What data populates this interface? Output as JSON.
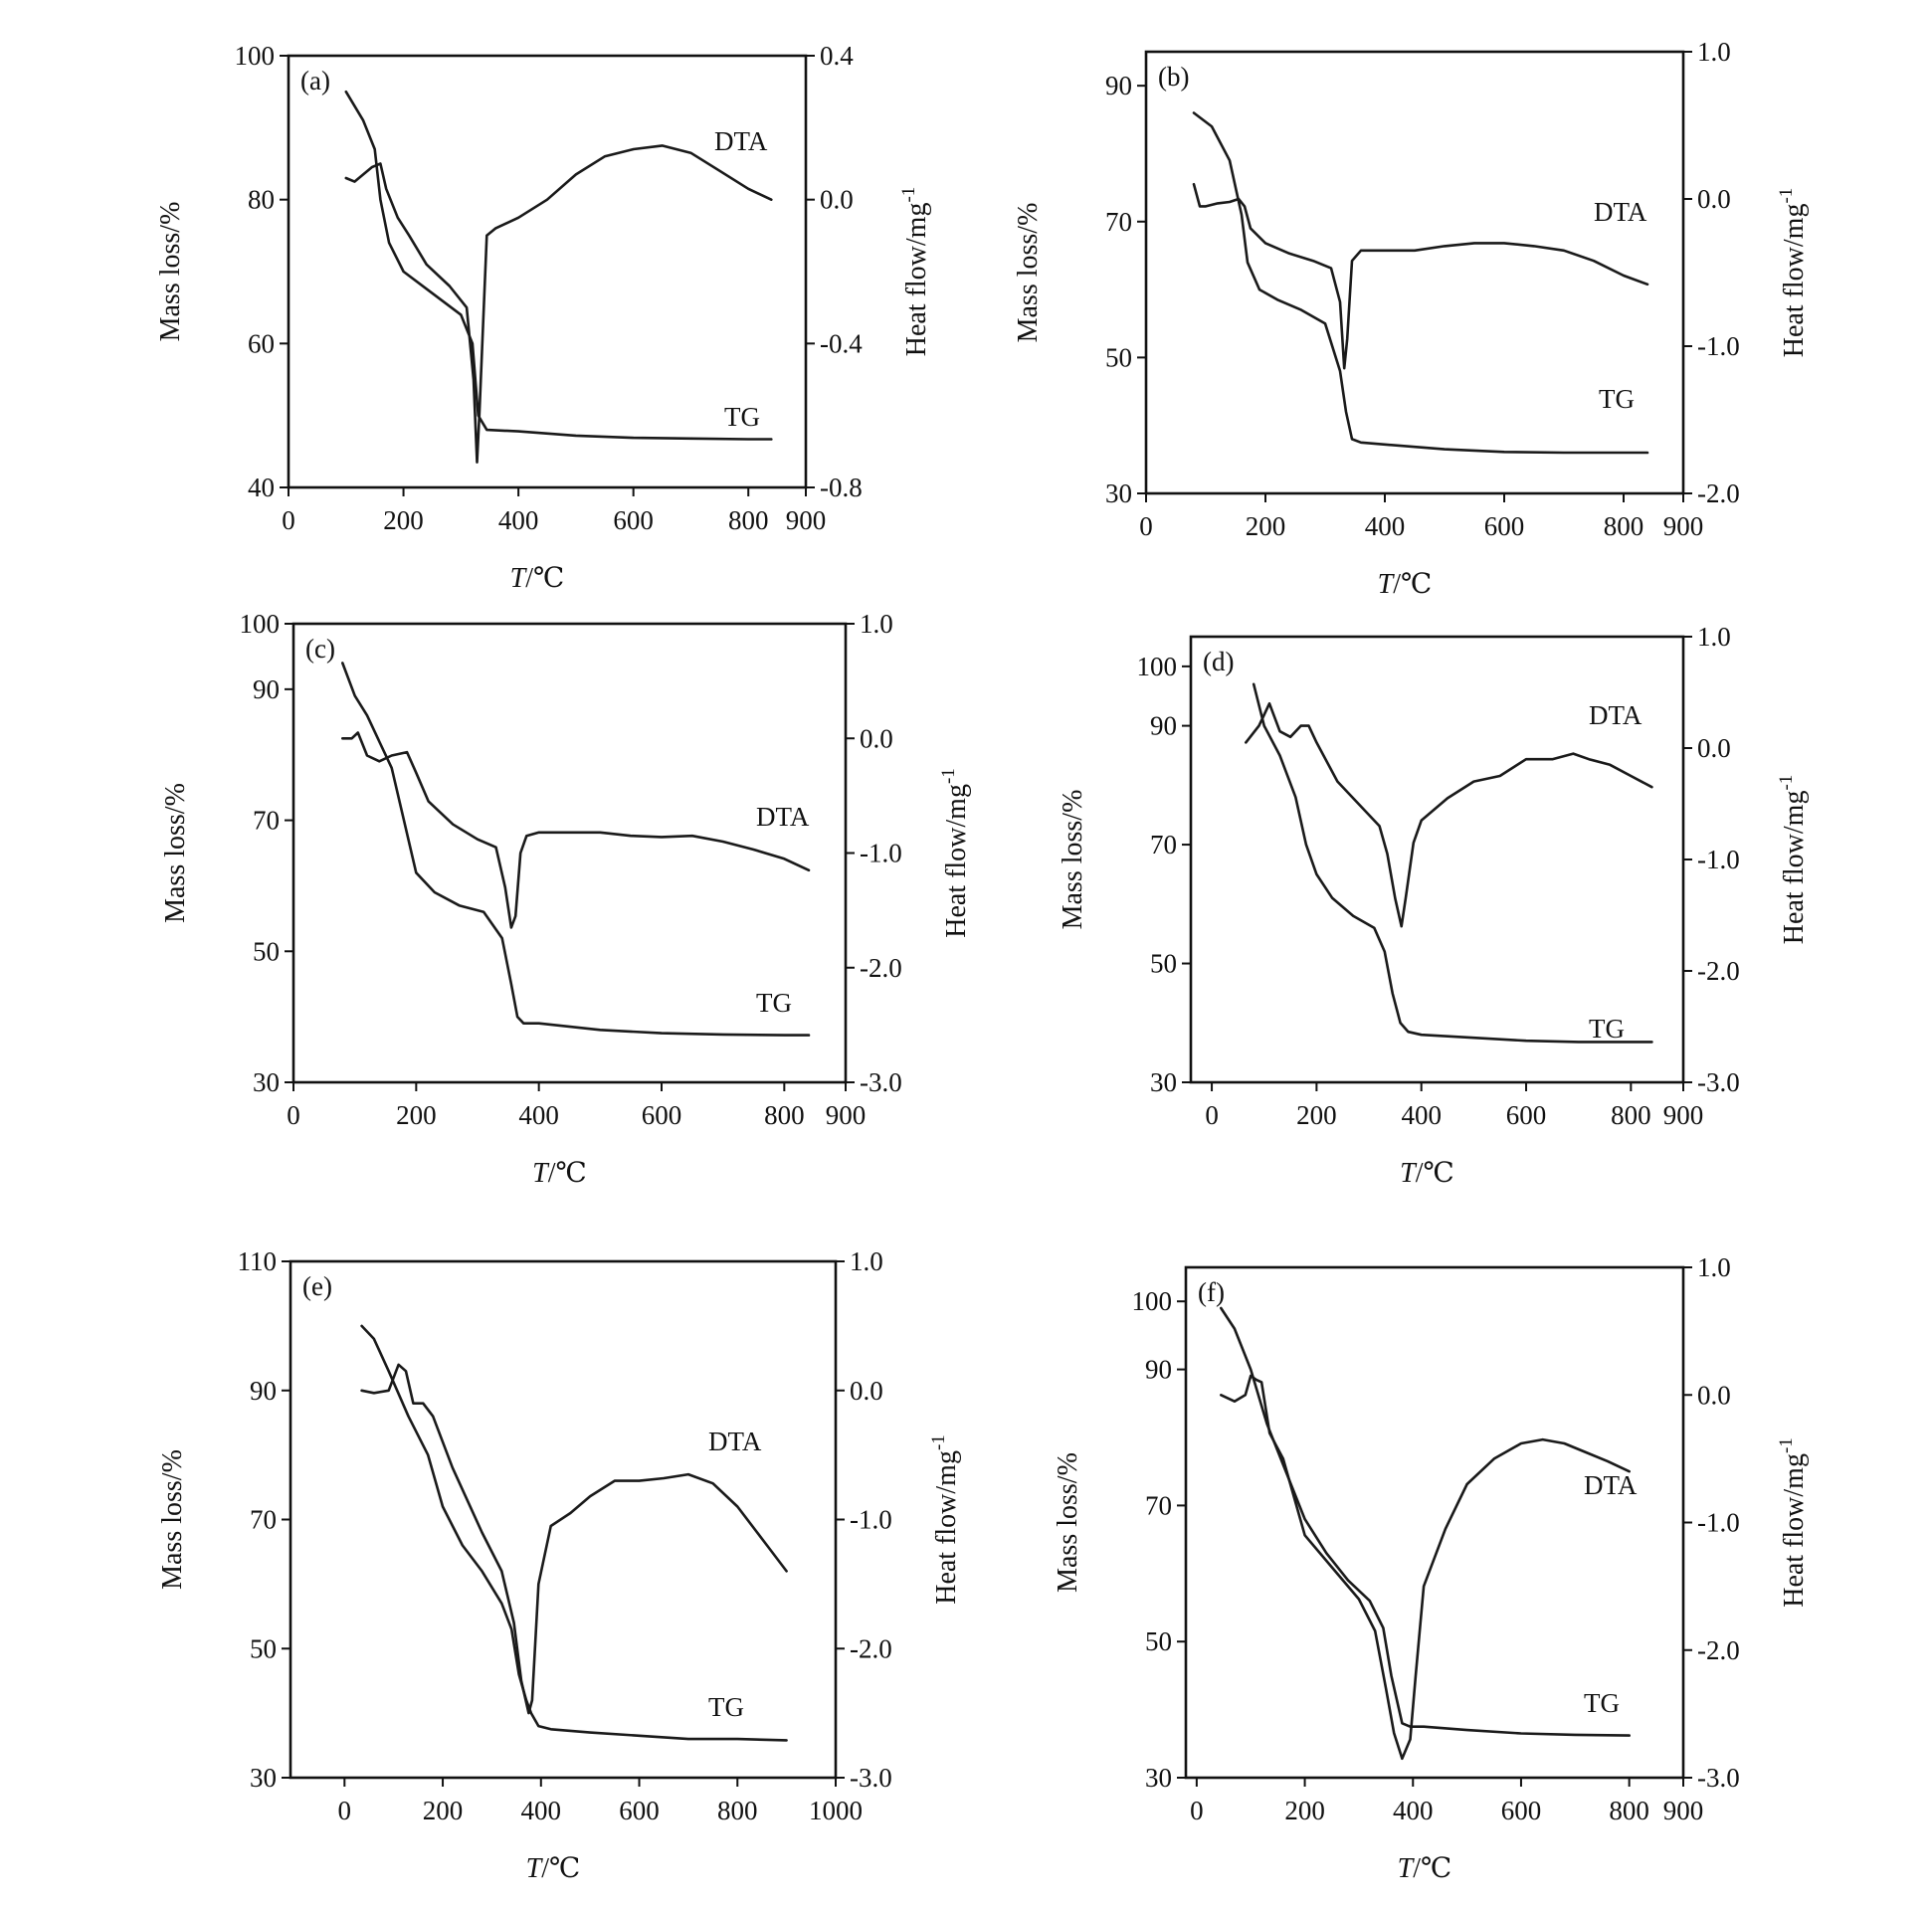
{
  "figure": {
    "ylabel_left": "Mass loss/%",
    "ylabel_right_base": "Heat flow/mg",
    "ylabel_right_sup": "-1",
    "xlabel_italic": "T",
    "xlabel_unit": "/℃",
    "colors": {
      "line": "#1a1a1a",
      "axes": "#111111",
      "background": "#ffffff"
    }
  },
  "chart_data": [
    {
      "type": "line",
      "panel": "(a)",
      "xlabel": "T/℃",
      "ylabel": "Mass loss/%",
      "y2label": "Heat flow/mg-1",
      "xlim": [
        0,
        900
      ],
      "ylim": [
        40,
        100
      ],
      "y2lim": [
        -0.8,
        0.4
      ],
      "xticks": [
        0,
        200,
        400,
        600,
        800,
        900
      ],
      "yticks": [
        40,
        60,
        80,
        100
      ],
      "y2ticks": [
        -0.8,
        -0.4,
        0.0,
        0.4
      ],
      "xtick_labels": [
        "0",
        "200",
        "400",
        "600",
        "800",
        "900"
      ],
      "ytick_labels": [
        "40",
        "60",
        "80",
        "100"
      ],
      "y2tick_labels": [
        "-0.8",
        "-0.4",
        "0.0",
        "0.4"
      ],
      "series": [
        {
          "name": "TG",
          "axis": "left",
          "x": [
            100,
            130,
            150,
            160,
            175,
            200,
            250,
            300,
            320,
            330,
            345,
            400,
            500,
            600,
            700,
            800,
            840
          ],
          "y": [
            95,
            91,
            87,
            80,
            74,
            70,
            67,
            64,
            60,
            50,
            48,
            47.8,
            47.2,
            46.9,
            46.8,
            46.7,
            46.7
          ]
        },
        {
          "name": "DTA",
          "axis": "right",
          "x": [
            100,
            115,
            130,
            145,
            160,
            170,
            190,
            210,
            240,
            280,
            310,
            322,
            328,
            332,
            345,
            360,
            400,
            450,
            500,
            550,
            600,
            650,
            700,
            750,
            800,
            840
          ],
          "y": [
            0.06,
            0.05,
            0.07,
            0.09,
            0.1,
            0.03,
            -0.05,
            -0.1,
            -0.18,
            -0.24,
            -0.3,
            -0.5,
            -0.73,
            -0.6,
            -0.1,
            -0.08,
            -0.05,
            0.0,
            0.07,
            0.12,
            0.14,
            0.15,
            0.13,
            0.08,
            0.03,
            0.0
          ]
        }
      ]
    },
    {
      "type": "line",
      "panel": "(b)",
      "xlabel": "T/℃",
      "ylabel": "Mass loss/%",
      "y2label": "Heat flow/mg-1",
      "xlim": [
        0,
        900
      ],
      "ylim": [
        30,
        95
      ],
      "y2lim": [
        -2.0,
        1.0
      ],
      "xticks": [
        0,
        200,
        400,
        600,
        800,
        900
      ],
      "yticks": [
        30,
        50,
        70,
        90
      ],
      "y2ticks": [
        -2.0,
        -1.0,
        0.0,
        1.0
      ],
      "xtick_labels": [
        "0",
        "200",
        "400",
        "600",
        "800",
        "900"
      ],
      "ytick_labels": [
        "30",
        "50",
        "70",
        "90"
      ],
      "y2tick_labels": [
        "-2.0",
        "-1.0",
        "0.0",
        "1.0"
      ],
      "series": [
        {
          "name": "TG",
          "axis": "left",
          "x": [
            80,
            110,
            140,
            160,
            170,
            190,
            220,
            260,
            300,
            325,
            335,
            345,
            360,
            400,
            500,
            600,
            700,
            800,
            840
          ],
          "y": [
            86,
            84,
            79,
            71,
            64,
            60,
            58.5,
            57,
            55,
            48,
            42,
            38,
            37.5,
            37.2,
            36.5,
            36.1,
            36,
            36,
            36
          ]
        },
        {
          "name": "DTA",
          "axis": "right",
          "x": [
            80,
            90,
            100,
            120,
            140,
            155,
            165,
            175,
            200,
            240,
            280,
            310,
            325,
            332,
            337,
            345,
            360,
            400,
            450,
            500,
            550,
            600,
            650,
            700,
            750,
            800,
            840
          ],
          "y": [
            0.1,
            -0.05,
            -0.05,
            -0.03,
            -0.02,
            0.0,
            -0.05,
            -0.2,
            -0.3,
            -0.37,
            -0.42,
            -0.47,
            -0.7,
            -1.15,
            -0.95,
            -0.42,
            -0.35,
            -0.35,
            -0.35,
            -0.32,
            -0.3,
            -0.3,
            -0.32,
            -0.35,
            -0.42,
            -0.52,
            -0.58
          ]
        }
      ]
    },
    {
      "type": "line",
      "panel": "(c)",
      "xlabel": "T/℃",
      "ylabel": "Mass loss/%",
      "y2label": "Heat flow/mg-1",
      "xlim": [
        0,
        900
      ],
      "ylim": [
        30,
        100
      ],
      "y2lim": [
        -3.0,
        1.0
      ],
      "xticks": [
        0,
        200,
        400,
        600,
        800,
        900
      ],
      "yticks": [
        30,
        50,
        70,
        90,
        100
      ],
      "y2ticks": [
        -3.0,
        -2.0,
        -1.0,
        0.0,
        1.0
      ],
      "xtick_labels": [
        "0",
        "200",
        "400",
        "600",
        "800",
        "900"
      ],
      "ytick_labels": [
        "30",
        "50",
        "70",
        "90",
        "100"
      ],
      "y2tick_labels": [
        "-3.0",
        "-2.0",
        "-1.0",
        "0.0",
        "1.0"
      ],
      "series": [
        {
          "name": "TG",
          "axis": "left",
          "x": [
            80,
            100,
            120,
            140,
            160,
            180,
            200,
            230,
            270,
            310,
            340,
            355,
            365,
            375,
            400,
            500,
            600,
            700,
            800,
            840
          ],
          "y": [
            94,
            89,
            86,
            82,
            78,
            70,
            62,
            59,
            57,
            56,
            52,
            45,
            40,
            39,
            39,
            38,
            37.5,
            37.3,
            37.2,
            37.2
          ]
        },
        {
          "name": "DTA",
          "axis": "right",
          "x": [
            80,
            95,
            105,
            120,
            140,
            160,
            185,
            200,
            220,
            260,
            300,
            330,
            345,
            355,
            362,
            370,
            380,
            400,
            450,
            500,
            550,
            600,
            650,
            700,
            750,
            800,
            840
          ],
          "y": [
            0.0,
            0.0,
            0.05,
            -0.15,
            -0.2,
            -0.15,
            -0.12,
            -0.3,
            -0.55,
            -0.75,
            -0.88,
            -0.95,
            -1.3,
            -1.65,
            -1.55,
            -1.0,
            -0.85,
            -0.82,
            -0.82,
            -0.82,
            -0.85,
            -0.86,
            -0.85,
            -0.9,
            -0.97,
            -1.05,
            -1.15
          ]
        }
      ]
    },
    {
      "type": "line",
      "panel": "(d)",
      "xlabel": "T/℃",
      "ylabel": "Mass loss/%",
      "y2label": "Heat flow/mg-1",
      "xlim": [
        -40,
        900
      ],
      "ylim": [
        30,
        105
      ],
      "y2lim": [
        -3.0,
        1.0
      ],
      "xticks": [
        0,
        200,
        400,
        600,
        800,
        900
      ],
      "yticks": [
        30,
        50,
        70,
        90,
        100
      ],
      "y2ticks": [
        -3.0,
        -2.0,
        -1.0,
        0.0,
        1.0
      ],
      "xtick_labels": [
        "0",
        "200",
        "400",
        "600",
        "800",
        "900"
      ],
      "ytick_labels": [
        "30",
        "50",
        "70",
        "90",
        "100"
      ],
      "y2tick_labels": [
        "-3.0",
        "-2.0",
        "-1.0",
        "0.0",
        "1.0"
      ],
      "series": [
        {
          "name": "TG",
          "axis": "left",
          "x": [
            80,
            100,
            130,
            160,
            180,
            200,
            230,
            270,
            310,
            330,
            345,
            360,
            375,
            400,
            500,
            600,
            700,
            800,
            840
          ],
          "y": [
            97,
            90,
            85,
            78,
            70,
            65,
            61,
            58,
            56,
            52,
            45,
            40,
            38.5,
            38,
            37.5,
            37,
            36.8,
            36.8,
            36.8
          ]
        },
        {
          "name": "DTA",
          "axis": "right",
          "x": [
            65,
            90,
            110,
            130,
            150,
            170,
            185,
            200,
            240,
            290,
            320,
            335,
            350,
            362,
            370,
            385,
            400,
            450,
            500,
            550,
            600,
            650,
            690,
            720,
            760,
            800,
            840
          ],
          "y": [
            0.05,
            0.2,
            0.4,
            0.15,
            0.1,
            0.2,
            0.2,
            0.05,
            -0.3,
            -0.55,
            -0.7,
            -0.95,
            -1.35,
            -1.6,
            -1.35,
            -0.85,
            -0.65,
            -0.45,
            -0.3,
            -0.25,
            -0.1,
            -0.1,
            -0.05,
            -0.1,
            -0.15,
            -0.25,
            -0.35
          ]
        }
      ]
    },
    {
      "type": "line",
      "panel": "(e)",
      "xlabel": "T/℃",
      "ylabel": "Mass loss/%",
      "y2label": "Heat flow/mg-1",
      "xlim": [
        -110,
        1000
      ],
      "ylim": [
        30,
        110
      ],
      "y2lim": [
        -3.0,
        1.0
      ],
      "xticks": [
        0,
        200,
        400,
        600,
        800,
        1000
      ],
      "yticks": [
        30,
        50,
        70,
        90,
        110
      ],
      "y2ticks": [
        -3.0,
        -2.0,
        -1.0,
        0.0,
        1.0
      ],
      "xtick_labels": [
        "0",
        "200",
        "400",
        "600",
        "800",
        "1000"
      ],
      "ytick_labels": [
        "30",
        "50",
        "70",
        "90",
        "110"
      ],
      "y2tick_labels": [
        "-3.0",
        "-2.0",
        "-1.0",
        "0.0",
        "1.0"
      ],
      "series": [
        {
          "name": "TG",
          "axis": "left",
          "x": [
            35,
            60,
            90,
            130,
            170,
            200,
            240,
            280,
            320,
            340,
            355,
            370,
            380,
            395,
            420,
            500,
            600,
            700,
            800,
            900
          ],
          "y": [
            100,
            98,
            93,
            86,
            80,
            72,
            66,
            62,
            57,
            53,
            46,
            42,
            40,
            38,
            37.5,
            37,
            36.5,
            36,
            36,
            35.8
          ]
        },
        {
          "name": "DTA",
          "axis": "right",
          "x": [
            35,
            60,
            90,
            110,
            125,
            140,
            160,
            180,
            220,
            280,
            320,
            345,
            360,
            375,
            382,
            395,
            420,
            460,
            500,
            550,
            600,
            650,
            700,
            750,
            800,
            860,
            900
          ],
          "y": [
            0.0,
            -0.02,
            0.0,
            0.2,
            0.15,
            -0.1,
            -0.1,
            -0.2,
            -0.6,
            -1.1,
            -1.4,
            -1.8,
            -2.25,
            -2.5,
            -2.4,
            -1.5,
            -1.05,
            -0.95,
            -0.82,
            -0.7,
            -0.7,
            -0.68,
            -0.65,
            -0.72,
            -0.9,
            -1.2,
            -1.4
          ]
        }
      ]
    },
    {
      "type": "line",
      "panel": "(f)",
      "xlabel": "T/℃",
      "ylabel": "Mass loss/%",
      "y2label": "Heat flow/mg-1",
      "xlim": [
        -20,
        900
      ],
      "ylim": [
        30,
        105
      ],
      "y2lim": [
        -3.0,
        1.0
      ],
      "xticks": [
        0,
        200,
        400,
        600,
        800,
        900
      ],
      "yticks": [
        30,
        50,
        70,
        90,
        100
      ],
      "y2ticks": [
        -3.0,
        -2.0,
        -1.0,
        0.0,
        1.0
      ],
      "xtick_labels": [
        "0",
        "200",
        "400",
        "600",
        "800",
        "900"
      ],
      "ytick_labels": [
        "30",
        "50",
        "70",
        "90",
        "100"
      ],
      "y2tick_labels": [
        "-3.0",
        "-2.0",
        "-1.0",
        "0.0",
        "1.0"
      ],
      "series": [
        {
          "name": "TG",
          "axis": "left",
          "x": [
            45,
            70,
            100,
            130,
            160,
            200,
            240,
            280,
            320,
            345,
            360,
            380,
            395,
            420,
            500,
            600,
            700,
            800
          ],
          "y": [
            99,
            96,
            90,
            82,
            76,
            68,
            63,
            59,
            56,
            52,
            45,
            38,
            37.5,
            37.5,
            37,
            36.5,
            36.3,
            36.2
          ]
        },
        {
          "name": "DTA",
          "axis": "right",
          "x": [
            45,
            70,
            90,
            100,
            110,
            120,
            135,
            160,
            200,
            250,
            300,
            330,
            350,
            365,
            380,
            395,
            405,
            420,
            460,
            500,
            550,
            600,
            640,
            680,
            720,
            760,
            800
          ],
          "y": [
            0.0,
            -0.05,
            0.0,
            0.15,
            0.12,
            0.1,
            -0.3,
            -0.5,
            -1.1,
            -1.35,
            -1.6,
            -1.85,
            -2.3,
            -2.65,
            -2.85,
            -2.7,
            -2.2,
            -1.5,
            -1.05,
            -0.7,
            -0.5,
            -0.38,
            -0.35,
            -0.38,
            -0.45,
            -0.52,
            -0.6
          ]
        }
      ]
    }
  ],
  "panels": [
    {
      "label": "(a)",
      "dta_label": "DTA",
      "tg_label": "TG"
    },
    {
      "label": "(b)",
      "dta_label": "DTA",
      "tg_label": "TG"
    },
    {
      "label": "(c)",
      "dta_label": "DTA",
      "tg_label": "TG"
    },
    {
      "label": "(d)",
      "dta_label": "DTA",
      "tg_label": "TG"
    },
    {
      "label": "(e)",
      "dta_label": "DTA",
      "tg_label": "TG"
    },
    {
      "label": "(f)",
      "dta_label": "DTA",
      "tg_label": "TG"
    }
  ]
}
